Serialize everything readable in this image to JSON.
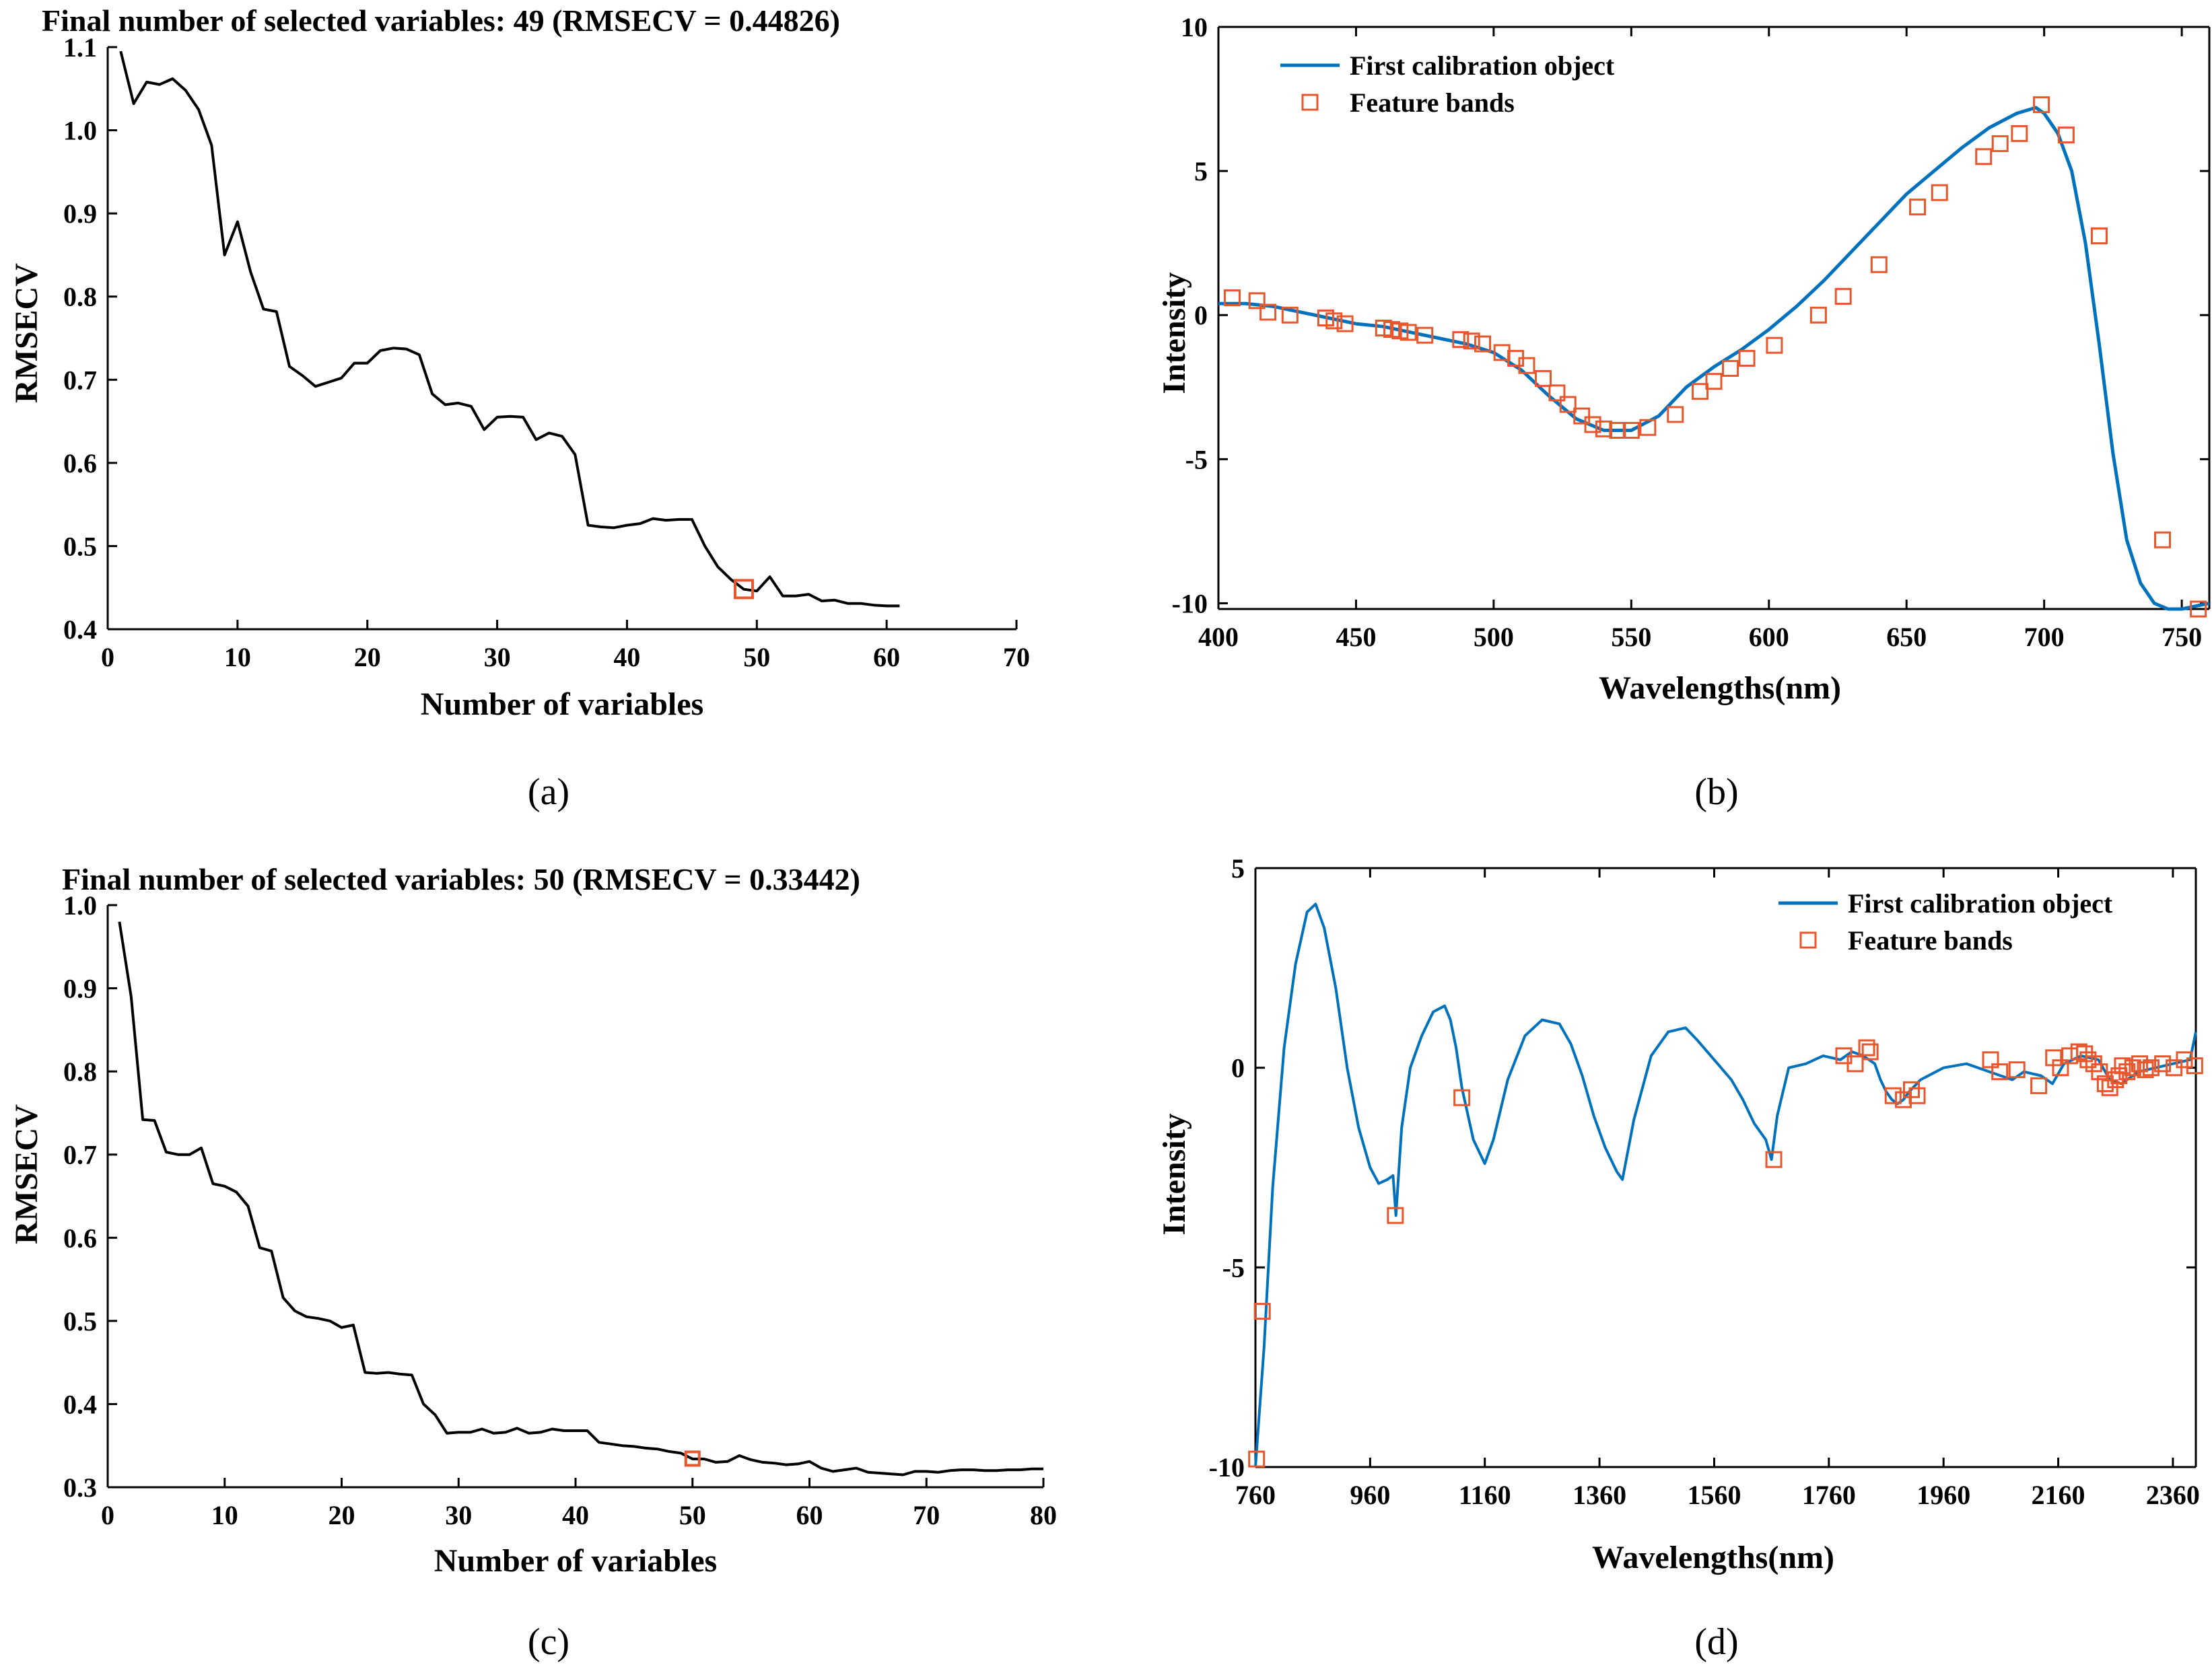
{
  "chart_data": [
    {
      "panel": "(a)",
      "type": "line",
      "title": "Final number of selected variables: 49  (RMSECV = 0.44826)",
      "xlabel": "Number of variables",
      "ylabel": "RMSECV",
      "xlim": [
        0,
        70
      ],
      "ylim": [
        0.4,
        1.1
      ],
      "xticks": [
        "0",
        "10",
        "20",
        "30",
        "40",
        "50",
        "60",
        "70"
      ],
      "yticks": [
        "0.4",
        "0.5",
        "0.6",
        "0.7",
        "0.8",
        "0.9",
        "1.0",
        "1.1"
      ],
      "series": [
        {
          "color": "#000000",
          "x": [
            1,
            2,
            3,
            4,
            5,
            6,
            7,
            8,
            9,
            10,
            11,
            12,
            13,
            14,
            15,
            16,
            17,
            18,
            19,
            20,
            21,
            22,
            23,
            24,
            25,
            26,
            27,
            28,
            29,
            30,
            31,
            32,
            33,
            34,
            35,
            36,
            37,
            38,
            39,
            40,
            41,
            42,
            43,
            44,
            45,
            46,
            47,
            48,
            49,
            50,
            51,
            52,
            53,
            54,
            55,
            56,
            57,
            58,
            59,
            60,
            61
          ],
          "y": [
            1.095,
            1.032,
            1.058,
            1.055,
            1.062,
            1.048,
            1.025,
            0.982,
            0.85,
            0.89,
            0.83,
            0.785,
            0.782,
            0.716,
            0.705,
            0.692,
            0.697,
            0.702,
            0.72,
            0.72,
            0.735,
            0.738,
            0.737,
            0.73,
            0.683,
            0.67,
            0.672,
            0.668,
            0.64,
            0.655,
            0.656,
            0.655,
            0.628,
            0.636,
            0.632,
            0.61,
            0.525,
            0.523,
            0.522,
            0.525,
            0.527,
            0.533,
            0.531,
            0.532,
            0.532,
            0.5,
            0.475,
            0.46,
            0.448,
            0.446,
            0.463,
            0.44,
            0.44,
            0.442,
            0.434,
            0.435,
            0.431,
            0.431,
            0.429,
            0.428,
            0.428
          ]
        }
      ],
      "marker": {
        "x": 49,
        "y": 0.44826,
        "color": "#e8562b",
        "shape": "square"
      }
    },
    {
      "panel": "(b)",
      "type": "line",
      "title": "",
      "xlabel": "Wavelengths(nm)",
      "ylabel": "Intensity",
      "xlim": [
        400,
        760
      ],
      "ylim": [
        -10.2,
        10
      ],
      "xticks": [
        "400",
        "450",
        "500",
        "550",
        "600",
        "650",
        "700",
        "750"
      ],
      "yticks": [
        "-10",
        "-5",
        "0",
        "5",
        "10"
      ],
      "legend": {
        "position": "top-left",
        "entries": [
          "First calibration object",
          "Feature bands"
        ]
      },
      "series": [
        {
          "name": "First calibration object",
          "color": "#0072bd",
          "x": [
            400,
            410,
            420,
            430,
            440,
            450,
            460,
            470,
            480,
            490,
            500,
            510,
            520,
            530,
            540,
            550,
            560,
            570,
            580,
            590,
            600,
            610,
            620,
            630,
            640,
            650,
            660,
            670,
            680,
            690,
            697,
            700,
            705,
            710,
            715,
            720,
            725,
            730,
            735,
            740,
            745,
            750,
            755,
            760
          ],
          "y": [
            0.4,
            0.4,
            0.3,
            0.1,
            -0.1,
            -0.3,
            -0.4,
            -0.6,
            -0.8,
            -1.0,
            -1.3,
            -1.9,
            -2.8,
            -3.6,
            -4.0,
            -4.0,
            -3.5,
            -2.5,
            -1.8,
            -1.2,
            -0.5,
            0.3,
            1.2,
            2.2,
            3.2,
            4.2,
            5.0,
            5.8,
            6.5,
            7.0,
            7.2,
            7.0,
            6.3,
            5.0,
            2.5,
            -1.0,
            -4.8,
            -7.8,
            -9.3,
            -10.0,
            -10.2,
            -10.2,
            -10.1,
            -10.0
          ]
        }
      ],
      "feature_bands": {
        "name": "Feature bands",
        "color": "#e8562b",
        "x": [
          405,
          414,
          418,
          426,
          439,
          442,
          446,
          460,
          463,
          466,
          469,
          475,
          488,
          492,
          496,
          503,
          508,
          512,
          518,
          523,
          527,
          532,
          536,
          540,
          545,
          550,
          556,
          566,
          575,
          580,
          586,
          592,
          602,
          618,
          627,
          640,
          654,
          662,
          678,
          684,
          691,
          699,
          708,
          720,
          743,
          756
        ],
        "y": [
          0.6,
          0.5,
          0.1,
          0.0,
          -0.1,
          -0.2,
          -0.3,
          -0.45,
          -0.5,
          -0.55,
          -0.6,
          -0.7,
          -0.85,
          -0.9,
          -1.0,
          -1.3,
          -1.5,
          -1.75,
          -2.2,
          -2.7,
          -3.1,
          -3.5,
          -3.8,
          -3.95,
          -4.0,
          -4.0,
          -3.9,
          -3.45,
          -2.65,
          -2.3,
          -1.85,
          -1.5,
          -1.05,
          0.0,
          0.65,
          1.75,
          3.75,
          4.25,
          5.5,
          5.95,
          6.3,
          7.3,
          6.25,
          2.75,
          -7.8,
          -10.2
        ]
      }
    },
    {
      "panel": "(c)",
      "type": "line",
      "title": "Final number of selected variables: 50  (RMSECV = 0.33442)",
      "xlabel": "Number of variables",
      "ylabel": "RMSECV",
      "xlim": [
        0,
        80
      ],
      "ylim": [
        0.3,
        1.0
      ],
      "xticks": [
        "0",
        "10",
        "20",
        "30",
        "40",
        "50",
        "60",
        "70",
        "80"
      ],
      "yticks": [
        "0.3",
        "0.4",
        "0.5",
        "0.6",
        "0.7",
        "0.8",
        "0.9",
        "1.0"
      ],
      "series": [
        {
          "color": "#000000",
          "x": [
            1,
            2,
            3,
            4,
            5,
            6,
            7,
            8,
            9,
            10,
            11,
            12,
            13,
            14,
            15,
            16,
            17,
            18,
            19,
            20,
            21,
            22,
            23,
            24,
            25,
            26,
            27,
            28,
            29,
            30,
            31,
            32,
            33,
            34,
            35,
            36,
            37,
            38,
            39,
            40,
            41,
            42,
            43,
            44,
            45,
            46,
            47,
            48,
            49,
            50,
            51,
            52,
            53,
            54,
            55,
            56,
            57,
            58,
            59,
            60,
            61,
            62,
            63,
            64,
            65,
            66,
            67,
            68,
            69,
            70,
            71,
            72,
            73,
            74,
            75,
            76,
            77,
            78,
            79,
            80
          ],
          "y": [
            0.98,
            0.89,
            0.742,
            0.741,
            0.703,
            0.7,
            0.7,
            0.708,
            0.665,
            0.662,
            0.655,
            0.638,
            0.588,
            0.584,
            0.528,
            0.512,
            0.505,
            0.503,
            0.5,
            0.492,
            0.495,
            0.438,
            0.437,
            0.438,
            0.436,
            0.435,
            0.4,
            0.387,
            0.365,
            0.366,
            0.366,
            0.37,
            0.365,
            0.366,
            0.371,
            0.365,
            0.366,
            0.37,
            0.368,
            0.368,
            0.368,
            0.354,
            0.352,
            0.35,
            0.349,
            0.347,
            0.346,
            0.343,
            0.341,
            0.334,
            0.334,
            0.33,
            0.331,
            0.338,
            0.333,
            0.33,
            0.329,
            0.327,
            0.328,
            0.331,
            0.323,
            0.319,
            0.321,
            0.323,
            0.318,
            0.317,
            0.316,
            0.315,
            0.319,
            0.319,
            0.318,
            0.32,
            0.321,
            0.321,
            0.32,
            0.32,
            0.321,
            0.321,
            0.322,
            0.322
          ]
        }
      ],
      "marker": {
        "x": 50,
        "y": 0.33442,
        "color": "#e8562b",
        "shape": "square"
      }
    },
    {
      "panel": "(d)",
      "type": "line",
      "title": "",
      "xlabel": "Wavelengths(nm)",
      "ylabel": "Intensity",
      "xlim": [
        760,
        2400
      ],
      "ylim": [
        -10,
        5
      ],
      "xticks": [
        "760",
        "960",
        "1160",
        "1360",
        "1560",
        "1760",
        "1960",
        "2160",
        "2360"
      ],
      "yticks": [
        "-10",
        "-5",
        "0",
        "5"
      ],
      "legend": {
        "position": "top-right",
        "entries": [
          "First calibration object",
          "Feature bands"
        ]
      },
      "series": [
        {
          "name": "First calibration object",
          "color": "#0072bd",
          "x": [
            760,
            775,
            790,
            810,
            830,
            850,
            865,
            880,
            900,
            920,
            940,
            960,
            975,
            990,
            1000,
            1005,
            1015,
            1030,
            1050,
            1070,
            1090,
            1100,
            1110,
            1120,
            1140,
            1160,
            1175,
            1200,
            1230,
            1260,
            1290,
            1310,
            1330,
            1350,
            1370,
            1390,
            1400,
            1420,
            1450,
            1480,
            1510,
            1530,
            1560,
            1590,
            1610,
            1630,
            1650,
            1660,
            1670,
            1690,
            1720,
            1750,
            1780,
            1800,
            1820,
            1840,
            1850,
            1860,
            1870,
            1880,
            1890,
            1900,
            1920,
            1960,
            2000,
            2040,
            2080,
            2100,
            2130,
            2150,
            2170,
            2200,
            2230,
            2250,
            2270,
            2300,
            2330,
            2360,
            2390,
            2400
          ],
          "y": [
            -10,
            -7,
            -3,
            0.5,
            2.6,
            3.9,
            4.1,
            3.5,
            2,
            0,
            -1.5,
            -2.5,
            -2.9,
            -2.8,
            -2.7,
            -3.7,
            -1.5,
            0,
            0.8,
            1.4,
            1.55,
            1.2,
            0.5,
            -0.5,
            -1.8,
            -2.4,
            -1.8,
            -0.3,
            0.8,
            1.2,
            1.1,
            0.6,
            -0.2,
            -1.2,
            -2.0,
            -2.6,
            -2.8,
            -1.3,
            0.3,
            0.9,
            1.0,
            0.7,
            0.2,
            -0.3,
            -0.8,
            -1.4,
            -1.8,
            -2.3,
            -1.2,
            0.0,
            0.1,
            0.3,
            0.2,
            0.4,
            0.3,
            0.1,
            -0.3,
            -0.6,
            -0.8,
            -0.9,
            -0.8,
            -0.6,
            -0.3,
            0.0,
            0.1,
            -0.1,
            -0.3,
            -0.1,
            -0.2,
            -0.4,
            0.1,
            0.3,
            0.2,
            -0.3,
            -0.4,
            -0.1,
            0.0,
            0.1,
            0.2,
            0.9
          ]
        }
      ],
      "feature_bands": {
        "name": "Feature bands",
        "color": "#e8562b",
        "x": [
          762,
          772,
          1004,
          1120,
          1664,
          1786,
          1806,
          1826,
          1832,
          1872,
          1890,
          1904,
          1914,
          2042,
          2058,
          2088,
          2126,
          2152,
          2164,
          2180,
          2196,
          2206,
          2212,
          2222,
          2232,
          2242,
          2250,
          2260,
          2266,
          2272,
          2280,
          2290,
          2302,
          2312,
          2322,
          2342,
          2362,
          2380,
          2398
        ],
        "y": [
          -9.8,
          -6.1,
          -3.7,
          -0.75,
          -2.3,
          0.3,
          0.1,
          0.5,
          0.4,
          -0.7,
          -0.8,
          -0.55,
          -0.7,
          0.2,
          -0.1,
          -0.05,
          -0.45,
          0.25,
          0.0,
          0.3,
          0.4,
          0.35,
          0.2,
          0.1,
          -0.1,
          -0.4,
          -0.5,
          -0.3,
          -0.2,
          0.05,
          -0.1,
          0.0,
          0.1,
          -0.05,
          0.0,
          0.1,
          0.0,
          0.2,
          0.05
        ]
      }
    }
  ]
}
